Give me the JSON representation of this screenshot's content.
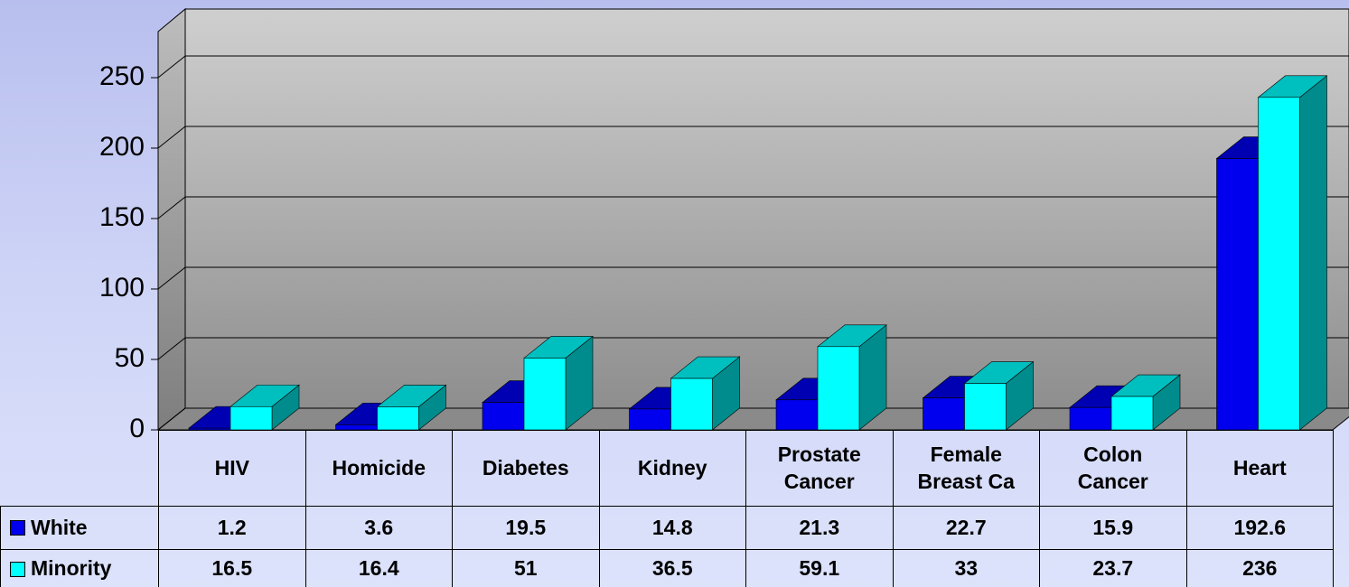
{
  "chart_data": {
    "type": "bar3d",
    "categories": [
      "HIV",
      "Homicide",
      "Diabetes",
      "Kidney",
      "Prostate Cancer",
      "Female Breast Ca",
      "Colon Cancer",
      "Heart"
    ],
    "series": [
      {
        "name": "White",
        "color": "#0000ee",
        "values": [
          1.2,
          3.6,
          19.5,
          14.8,
          21.3,
          22.7,
          15.9,
          192.6
        ]
      },
      {
        "name": "Minority",
        "color": "#00ffff",
        "values": [
          16.5,
          16.4,
          51,
          36.5,
          59.1,
          33,
          23.7,
          236
        ]
      }
    ],
    "ylim": [
      0,
      250
    ],
    "yticks": [
      0,
      50,
      100,
      150,
      200,
      250
    ],
    "grid": true
  }
}
